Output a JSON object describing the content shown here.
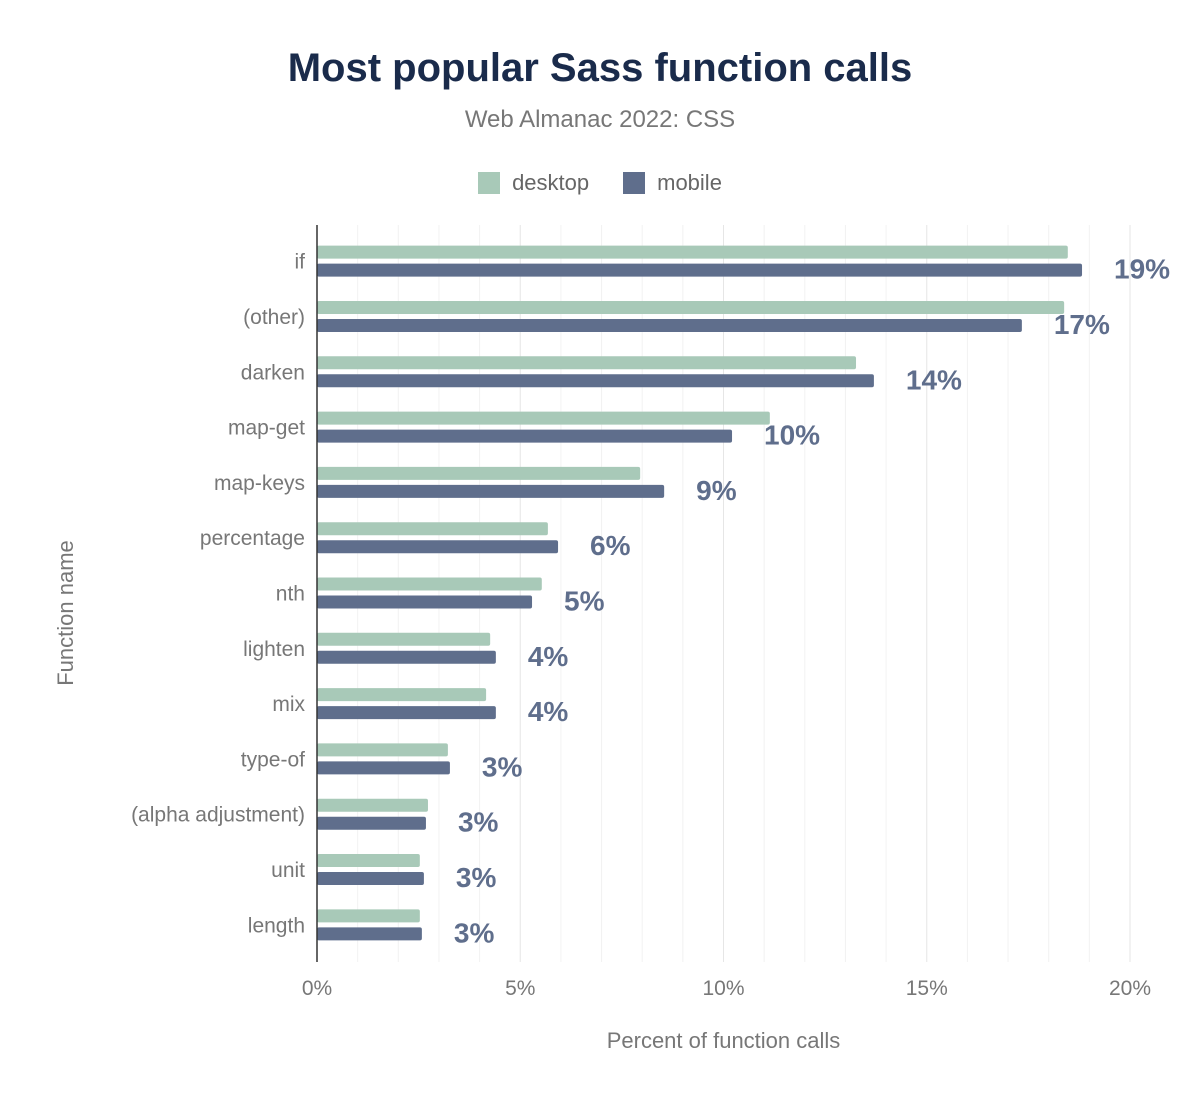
{
  "chart_data": {
    "type": "bar",
    "orientation": "horizontal",
    "title": "Most popular Sass function calls",
    "subtitle": "Web Almanac 2022: CSS",
    "xlabel": "Percent of function calls",
    "ylabel": "Function name",
    "xlim": [
      0,
      20
    ],
    "xticks": [
      "0%",
      "5%",
      "10%",
      "15%",
      "20%"
    ],
    "grid": true,
    "legend_placement": "top",
    "categories": [
      "if",
      "(other)",
      "darken",
      "map-get",
      "map-keys",
      "percentage",
      "nth",
      "lighten",
      "mix",
      "type-of",
      "(alpha adjustment)",
      "unit",
      "length"
    ],
    "series": [
      {
        "name": "desktop",
        "color": "#a8c9b8",
        "values": [
          18.47,
          18.38,
          13.26,
          11.14,
          7.95,
          5.68,
          5.53,
          4.26,
          4.16,
          3.22,
          2.73,
          2.53,
          2.53
        ]
      },
      {
        "name": "mobile",
        "color": "#5f6e8c",
        "values": [
          18.82,
          17.34,
          13.7,
          10.21,
          8.54,
          5.93,
          5.29,
          4.4,
          4.4,
          3.27,
          2.68,
          2.63,
          2.58
        ],
        "data_labels": [
          "19%",
          "17%",
          "14%",
          "10%",
          "9%",
          "6%",
          "5%",
          "4%",
          "4%",
          "3%",
          "3%",
          "3%",
          "3%"
        ]
      }
    ]
  }
}
